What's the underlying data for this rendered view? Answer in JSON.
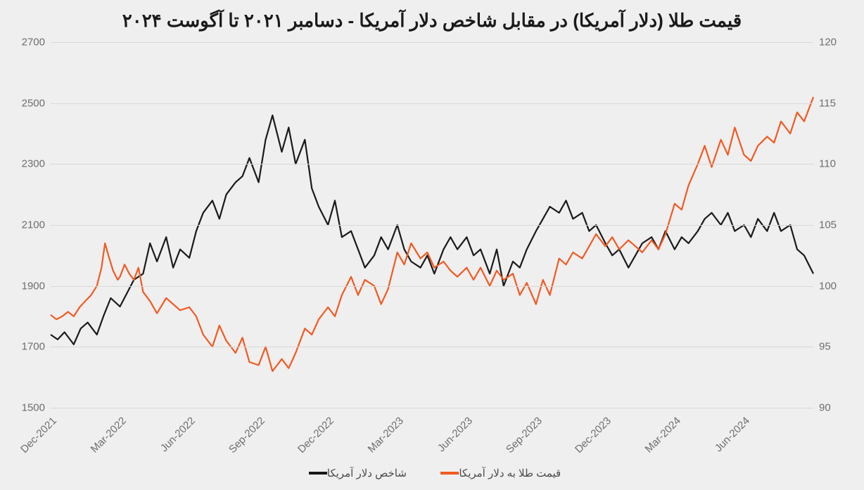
{
  "chart": {
    "type": "line-dual-axis",
    "title": "قیمت طلا (دلار آمریکا) در مقابل شاخص دلار آمریکا - دسامبر ۲۰۲۱ تا آگوست ۲۰۲۴",
    "title_fontsize": 26,
    "background_color": "#efefef",
    "grid_color": "#d8d8d8",
    "axis_label_color": "#6e6e6e",
    "axis_label_fontsize": 15,
    "line_width": 2.2,
    "left_axis": {
      "min": 1500,
      "max": 2700,
      "ticks": [
        1500,
        1700,
        1900,
        2100,
        2300,
        2500,
        2700
      ]
    },
    "right_axis": {
      "min": 90,
      "max": 120,
      "ticks": [
        90,
        95,
        100,
        105,
        110,
        115,
        120
      ]
    },
    "x_axis": {
      "min": 0,
      "max": 33,
      "tick_positions": [
        0,
        3,
        6,
        9,
        12,
        15,
        18,
        21,
        24,
        27,
        30
      ],
      "tick_labels": [
        "Dec-2021",
        "Mar-2022",
        "Jun-2022",
        "Sep-2022",
        "Dec-2022",
        "Mar-2023",
        "Jun-2023",
        "Sep-2023",
        "Dec-2023",
        "Mar-2024",
        "Jun-2024"
      ]
    },
    "series": {
      "gold": {
        "label": "قیمت طلا به دلار آمریکا",
        "color": "#f15a22",
        "axis": "left",
        "data": [
          [
            0.0,
            1805
          ],
          [
            0.25,
            1790
          ],
          [
            0.5,
            1800
          ],
          [
            0.75,
            1815
          ],
          [
            1.0,
            1800
          ],
          [
            1.25,
            1830
          ],
          [
            1.5,
            1850
          ],
          [
            1.75,
            1870
          ],
          [
            2.0,
            1900
          ],
          [
            2.2,
            1960
          ],
          [
            2.35,
            2040
          ],
          [
            2.5,
            2000
          ],
          [
            2.7,
            1950
          ],
          [
            2.9,
            1920
          ],
          [
            3.0,
            1930
          ],
          [
            3.2,
            1970
          ],
          [
            3.4,
            1940
          ],
          [
            3.6,
            1920
          ],
          [
            3.8,
            1960
          ],
          [
            4.0,
            1880
          ],
          [
            4.3,
            1850
          ],
          [
            4.6,
            1810
          ],
          [
            5.0,
            1860
          ],
          [
            5.3,
            1840
          ],
          [
            5.6,
            1820
          ],
          [
            6.0,
            1830
          ],
          [
            6.3,
            1800
          ],
          [
            6.6,
            1740
          ],
          [
            7.0,
            1700
          ],
          [
            7.3,
            1770
          ],
          [
            7.6,
            1720
          ],
          [
            8.0,
            1680
          ],
          [
            8.3,
            1730
          ],
          [
            8.6,
            1650
          ],
          [
            9.0,
            1640
          ],
          [
            9.3,
            1700
          ],
          [
            9.6,
            1620
          ],
          [
            10.0,
            1660
          ],
          [
            10.3,
            1630
          ],
          [
            10.6,
            1680
          ],
          [
            11.0,
            1760
          ],
          [
            11.3,
            1740
          ],
          [
            11.6,
            1790
          ],
          [
            12.0,
            1830
          ],
          [
            12.3,
            1800
          ],
          [
            12.6,
            1870
          ],
          [
            13.0,
            1930
          ],
          [
            13.3,
            1870
          ],
          [
            13.6,
            1920
          ],
          [
            14.0,
            1900
          ],
          [
            14.3,
            1840
          ],
          [
            14.6,
            1890
          ],
          [
            15.0,
            2010
          ],
          [
            15.3,
            1970
          ],
          [
            15.6,
            2040
          ],
          [
            16.0,
            1990
          ],
          [
            16.3,
            2010
          ],
          [
            16.6,
            1960
          ],
          [
            17.0,
            1980
          ],
          [
            17.3,
            1950
          ],
          [
            17.6,
            1930
          ],
          [
            18.0,
            1960
          ],
          [
            18.3,
            1920
          ],
          [
            18.6,
            1960
          ],
          [
            19.0,
            1900
          ],
          [
            19.3,
            1950
          ],
          [
            19.6,
            1920
          ],
          [
            20.0,
            1940
          ],
          [
            20.3,
            1870
          ],
          [
            20.6,
            1910
          ],
          [
            21.0,
            1840
          ],
          [
            21.3,
            1920
          ],
          [
            21.6,
            1870
          ],
          [
            22.0,
            1990
          ],
          [
            22.3,
            1970
          ],
          [
            22.6,
            2010
          ],
          [
            23.0,
            1990
          ],
          [
            23.3,
            2030
          ],
          [
            23.6,
            2070
          ],
          [
            24.0,
            2030
          ],
          [
            24.3,
            2060
          ],
          [
            24.6,
            2020
          ],
          [
            25.0,
            2050
          ],
          [
            25.3,
            2030
          ],
          [
            25.6,
            2010
          ],
          [
            26.0,
            2050
          ],
          [
            26.3,
            2020
          ],
          [
            26.6,
            2070
          ],
          [
            27.0,
            2170
          ],
          [
            27.3,
            2150
          ],
          [
            27.6,
            2230
          ],
          [
            28.0,
            2300
          ],
          [
            28.3,
            2360
          ],
          [
            28.6,
            2290
          ],
          [
            29.0,
            2380
          ],
          [
            29.3,
            2330
          ],
          [
            29.6,
            2420
          ],
          [
            30.0,
            2330
          ],
          [
            30.3,
            2310
          ],
          [
            30.6,
            2360
          ],
          [
            31.0,
            2390
          ],
          [
            31.3,
            2370
          ],
          [
            31.6,
            2440
          ],
          [
            32.0,
            2400
          ],
          [
            32.3,
            2470
          ],
          [
            32.6,
            2440
          ],
          [
            33.0,
            2520
          ]
        ]
      },
      "dxy": {
        "label": "شاخص دلار آمریکا",
        "color": "#1a1a1a",
        "axis": "right",
        "data": [
          [
            0.0,
            96.0
          ],
          [
            0.3,
            95.6
          ],
          [
            0.6,
            96.2
          ],
          [
            1.0,
            95.2
          ],
          [
            1.3,
            96.5
          ],
          [
            1.6,
            97.0
          ],
          [
            2.0,
            96.0
          ],
          [
            2.3,
            97.6
          ],
          [
            2.6,
            99.0
          ],
          [
            3.0,
            98.3
          ],
          [
            3.3,
            99.4
          ],
          [
            3.6,
            100.5
          ],
          [
            4.0,
            101.0
          ],
          [
            4.3,
            103.5
          ],
          [
            4.6,
            102.0
          ],
          [
            5.0,
            104.0
          ],
          [
            5.3,
            101.5
          ],
          [
            5.6,
            103.0
          ],
          [
            6.0,
            102.3
          ],
          [
            6.3,
            104.5
          ],
          [
            6.6,
            106.0
          ],
          [
            7.0,
            107.0
          ],
          [
            7.3,
            105.5
          ],
          [
            7.6,
            107.5
          ],
          [
            8.0,
            108.5
          ],
          [
            8.3,
            109.0
          ],
          [
            8.6,
            110.5
          ],
          [
            9.0,
            108.5
          ],
          [
            9.3,
            112.0
          ],
          [
            9.6,
            114.0
          ],
          [
            10.0,
            111.0
          ],
          [
            10.3,
            113.0
          ],
          [
            10.6,
            110.0
          ],
          [
            11.0,
            112.0
          ],
          [
            11.3,
            108.0
          ],
          [
            11.6,
            106.5
          ],
          [
            12.0,
            105.0
          ],
          [
            12.3,
            107.0
          ],
          [
            12.6,
            104.0
          ],
          [
            13.0,
            104.5
          ],
          [
            13.3,
            103.0
          ],
          [
            13.6,
            101.5
          ],
          [
            14.0,
            102.5
          ],
          [
            14.3,
            104.0
          ],
          [
            14.6,
            103.0
          ],
          [
            15.0,
            105.0
          ],
          [
            15.3,
            103.0
          ],
          [
            15.6,
            102.0
          ],
          [
            16.0,
            101.5
          ],
          [
            16.3,
            102.5
          ],
          [
            16.6,
            101.0
          ],
          [
            17.0,
            103.0
          ],
          [
            17.3,
            104.0
          ],
          [
            17.6,
            103.0
          ],
          [
            18.0,
            104.0
          ],
          [
            18.3,
            102.5
          ],
          [
            18.6,
            103.0
          ],
          [
            19.0,
            101.0
          ],
          [
            19.3,
            103.0
          ],
          [
            19.6,
            100.0
          ],
          [
            20.0,
            102.0
          ],
          [
            20.3,
            101.5
          ],
          [
            20.6,
            103.0
          ],
          [
            21.0,
            104.5
          ],
          [
            21.3,
            105.5
          ],
          [
            21.6,
            106.5
          ],
          [
            22.0,
            106.0
          ],
          [
            22.3,
            107.0
          ],
          [
            22.6,
            105.5
          ],
          [
            23.0,
            106.0
          ],
          [
            23.3,
            104.5
          ],
          [
            23.6,
            105.0
          ],
          [
            24.0,
            103.5
          ],
          [
            24.3,
            102.5
          ],
          [
            24.6,
            103.0
          ],
          [
            25.0,
            101.5
          ],
          [
            25.3,
            102.5
          ],
          [
            25.6,
            103.5
          ],
          [
            26.0,
            104.0
          ],
          [
            26.3,
            103.0
          ],
          [
            26.6,
            104.5
          ],
          [
            27.0,
            103.0
          ],
          [
            27.3,
            104.0
          ],
          [
            27.6,
            103.5
          ],
          [
            28.0,
            104.5
          ],
          [
            28.3,
            105.5
          ],
          [
            28.6,
            106.0
          ],
          [
            29.0,
            105.0
          ],
          [
            29.3,
            106.0
          ],
          [
            29.6,
            104.5
          ],
          [
            30.0,
            105.0
          ],
          [
            30.3,
            104.0
          ],
          [
            30.6,
            105.5
          ],
          [
            31.0,
            104.5
          ],
          [
            31.3,
            106.0
          ],
          [
            31.6,
            104.5
          ],
          [
            32.0,
            105.0
          ],
          [
            32.3,
            103.0
          ],
          [
            32.6,
            102.5
          ],
          [
            33.0,
            101.0
          ]
        ]
      }
    },
    "legend_fontsize": 15
  }
}
